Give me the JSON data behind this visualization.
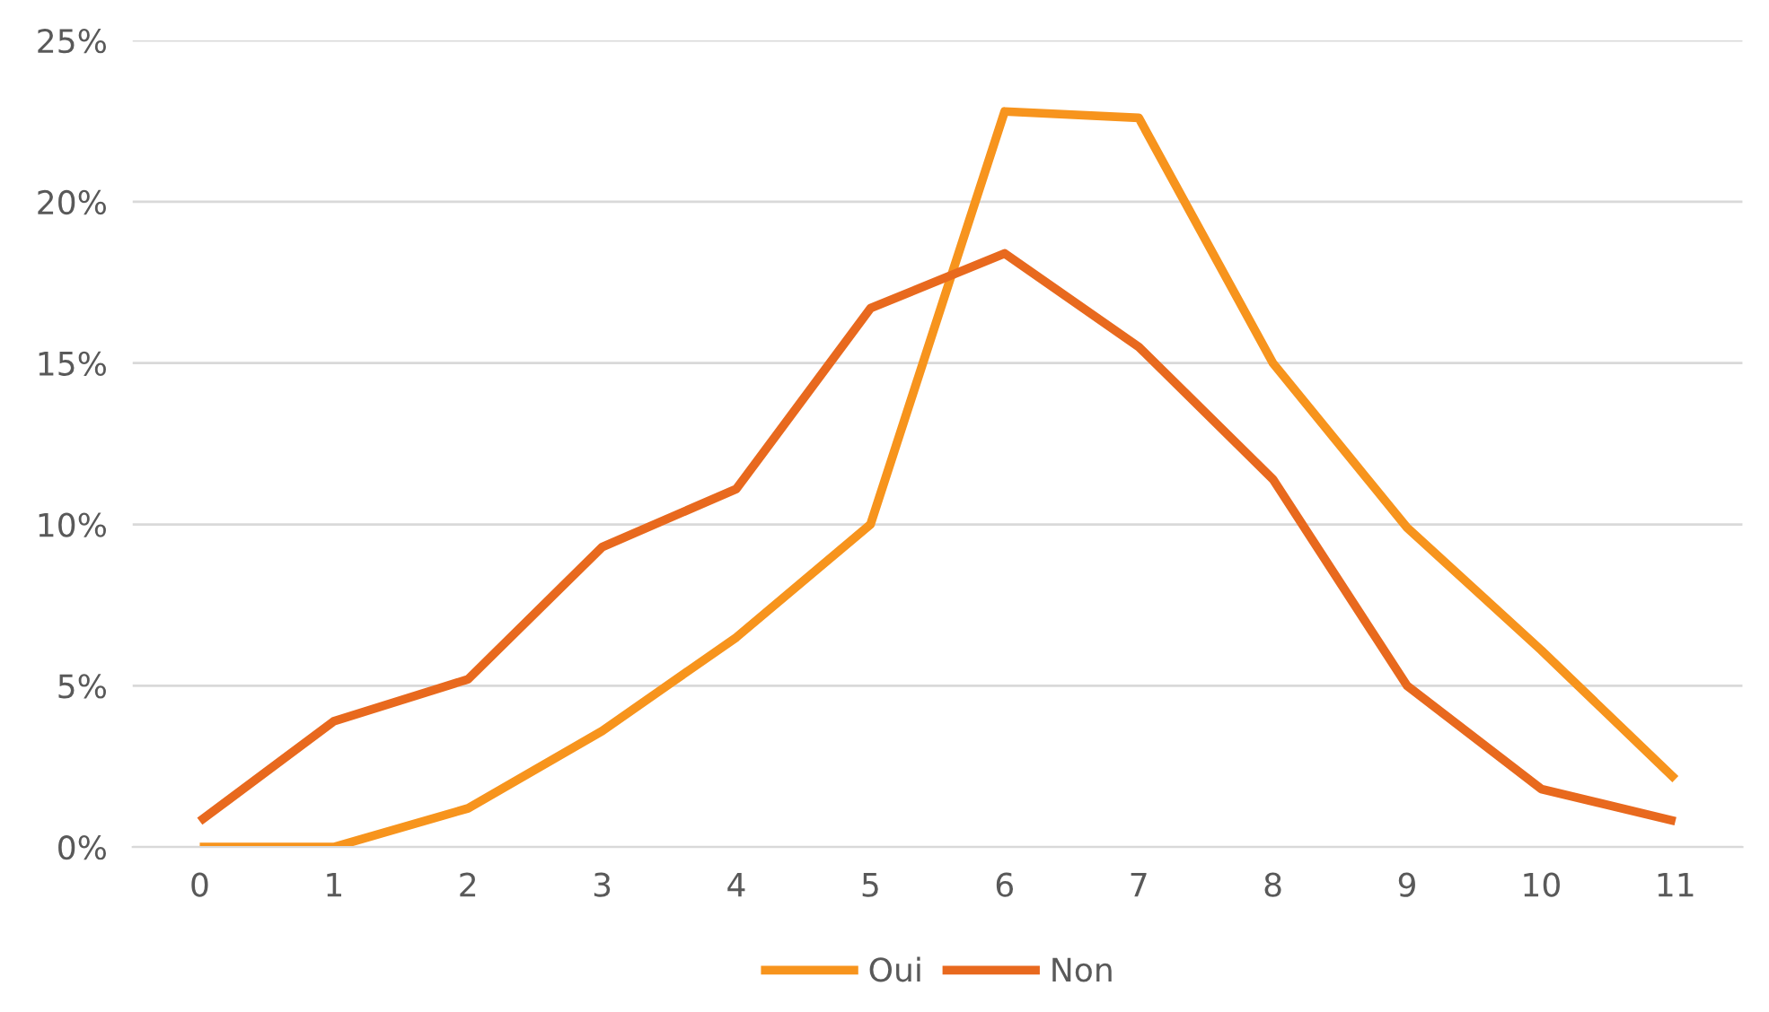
{
  "chart_data": {
    "type": "line",
    "categories": [
      "0",
      "1",
      "2",
      "3",
      "4",
      "5",
      "6",
      "7",
      "8",
      "9",
      "10",
      "11"
    ],
    "series": [
      {
        "name": "Oui",
        "color": "#f7941d",
        "values": [
          0,
          0,
          1.2,
          3.6,
          6.5,
          10.0,
          22.8,
          22.6,
          15.0,
          9.9,
          6.1,
          2.1
        ]
      },
      {
        "name": "Non",
        "color": "#e8691e",
        "values": [
          0.8,
          3.9,
          5.2,
          9.3,
          11.1,
          16.7,
          18.4,
          15.5,
          11.4,
          5.0,
          1.8,
          0.8
        ]
      }
    ],
    "ylim": [
      0,
      25
    ],
    "yticks": [
      {
        "value": 0,
        "label": "0%"
      },
      {
        "value": 5,
        "label": "5%"
      },
      {
        "value": 10,
        "label": "10%"
      },
      {
        "value": 15,
        "label": "15%"
      },
      {
        "value": 20,
        "label": "20%"
      },
      {
        "value": 25,
        "label": "25%"
      }
    ],
    "grid": "y",
    "legend": "bottom",
    "marker": "none",
    "line_style": "solid"
  }
}
